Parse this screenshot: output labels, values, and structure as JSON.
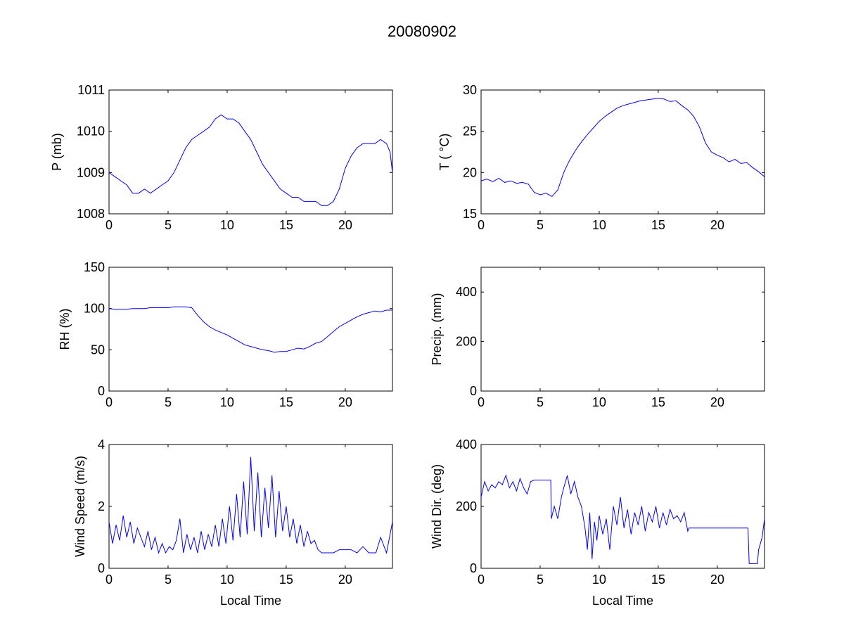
{
  "figure_title": "20080902",
  "chart_data": [
    {
      "type": "line",
      "title": "",
      "xlabel": "",
      "ylabel": "P (mb)",
      "xlim": [
        0,
        24
      ],
      "ylim": [
        1008,
        1011
      ],
      "xticks": [
        0,
        5,
        10,
        15,
        20
      ],
      "yticks": [
        1008,
        1009,
        1010,
        1011
      ],
      "grid": false,
      "color": "#0000ff",
      "series": [
        {
          "x": [
            0,
            0.5,
            1,
            1.5,
            2,
            2.5,
            3,
            3.5,
            4,
            4.5,
            5,
            5.5,
            6,
            6.5,
            7,
            7.5,
            8,
            8.5,
            9,
            9.5,
            10,
            10.5,
            11,
            11.5,
            12,
            12.5,
            13,
            13.5,
            14,
            14.5,
            15,
            15.5,
            16,
            16.5,
            17,
            17.5,
            18,
            18.5,
            19,
            19.5,
            20,
            20.5,
            21,
            21.5,
            22,
            22.5,
            23,
            23.5,
            23.8,
            24
          ],
          "y": [
            1009.0,
            1008.9,
            1008.8,
            1008.7,
            1008.5,
            1008.5,
            1008.6,
            1008.5,
            1008.6,
            1008.7,
            1008.8,
            1009.0,
            1009.3,
            1009.6,
            1009.8,
            1009.9,
            1010.0,
            1010.1,
            1010.3,
            1010.4,
            1010.3,
            1010.3,
            1010.2,
            1010.0,
            1009.8,
            1009.5,
            1009.2,
            1009.0,
            1008.8,
            1008.6,
            1008.5,
            1008.4,
            1008.4,
            1008.3,
            1008.3,
            1008.3,
            1008.2,
            1008.2,
            1008.3,
            1008.6,
            1009.1,
            1009.4,
            1009.6,
            1009.7,
            1009.7,
            1009.7,
            1009.8,
            1009.7,
            1009.5,
            1009.0
          ]
        }
      ]
    },
    {
      "type": "line",
      "title": "",
      "xlabel": "",
      "ylabel": "T ( °C)",
      "xlim": [
        0,
        24
      ],
      "ylim": [
        15,
        30
      ],
      "xticks": [
        0,
        5,
        10,
        15,
        20
      ],
      "yticks": [
        15,
        20,
        25,
        30
      ],
      "grid": false,
      "color": "#0000ff",
      "series": [
        {
          "x": [
            0,
            0.5,
            1,
            1.5,
            2,
            2.5,
            3,
            3.5,
            4,
            4.5,
            5,
            5.5,
            6,
            6.5,
            7,
            7.5,
            8,
            8.5,
            9,
            9.5,
            10,
            10.5,
            11,
            11.5,
            12,
            12.5,
            13,
            13.5,
            14,
            14.5,
            15,
            15.5,
            16,
            16.5,
            17,
            17.5,
            18,
            18.5,
            19,
            19.5,
            20,
            20.5,
            21,
            21.5,
            22,
            22.5,
            23,
            23.5,
            24
          ],
          "y": [
            19.0,
            19.2,
            18.9,
            19.3,
            18.8,
            19.0,
            18.7,
            18.8,
            18.6,
            17.6,
            17.3,
            17.5,
            17.1,
            17.9,
            20.0,
            21.5,
            22.7,
            23.7,
            24.6,
            25.4,
            26.2,
            26.8,
            27.3,
            27.8,
            28.1,
            28.3,
            28.5,
            28.7,
            28.8,
            28.9,
            29.0,
            28.9,
            28.6,
            28.7,
            28.1,
            27.6,
            26.8,
            25.5,
            23.6,
            22.5,
            22.1,
            21.8,
            21.3,
            21.6,
            21.1,
            21.2,
            20.6,
            20.1,
            19.5
          ]
        }
      ]
    },
    {
      "type": "line",
      "title": "",
      "xlabel": "",
      "ylabel": "RH (%)",
      "xlim": [
        0,
        24
      ],
      "ylim": [
        0,
        150
      ],
      "xticks": [
        0,
        5,
        10,
        15,
        20
      ],
      "yticks": [
        0,
        50,
        100,
        150
      ],
      "grid": false,
      "color": "#0000ff",
      "series": [
        {
          "x": [
            0,
            0.5,
            1,
            1.5,
            2,
            2.5,
            3,
            3.5,
            4,
            4.5,
            5,
            5.5,
            6,
            6.5,
            7,
            7.5,
            8,
            8.5,
            9,
            9.5,
            10,
            10.5,
            11,
            11.5,
            12,
            12.5,
            13,
            13.5,
            14,
            14.5,
            15,
            15.5,
            16,
            16.5,
            17,
            17.5,
            18,
            18.5,
            19,
            19.5,
            20,
            20.5,
            21,
            21.5,
            22,
            22.5,
            23,
            23.5,
            24
          ],
          "y": [
            100,
            99,
            99,
            99,
            100,
            100,
            100,
            101,
            101,
            101,
            101,
            102,
            102,
            102,
            101,
            92,
            84,
            78,
            74,
            71,
            68,
            64,
            60,
            56,
            54,
            52,
            50,
            49,
            47,
            48,
            48,
            50,
            52,
            51,
            54,
            58,
            60,
            66,
            72,
            78,
            82,
            86,
            90,
            93,
            95,
            97,
            96,
            98,
            98
          ]
        }
      ]
    },
    {
      "type": "line",
      "title": "",
      "xlabel": "",
      "ylabel": "Precip. (mm)",
      "xlim": [
        0,
        24
      ],
      "ylim": [
        0,
        500
      ],
      "xticks": [
        0,
        5,
        10,
        15,
        20
      ],
      "yticks": [
        0,
        200,
        400
      ],
      "grid": false,
      "color": "#0000ff",
      "series": []
    },
    {
      "type": "line",
      "title": "",
      "xlabel": "Local Time",
      "ylabel": "Wind Speed (m/s)",
      "xlim": [
        0,
        24
      ],
      "ylim": [
        0,
        4
      ],
      "xticks": [
        0,
        5,
        10,
        15,
        20
      ],
      "yticks": [
        0,
        2,
        4
      ],
      "grid": false,
      "color": "#0000ff",
      "series": [
        {
          "x": [
            0,
            0.3,
            0.6,
            0.9,
            1.2,
            1.5,
            1.8,
            2.1,
            2.4,
            2.7,
            3.0,
            3.3,
            3.6,
            3.9,
            4.2,
            4.5,
            4.8,
            5.1,
            5.4,
            5.7,
            6.0,
            6.3,
            6.6,
            6.9,
            7.2,
            7.5,
            7.8,
            8.1,
            8.4,
            8.7,
            9.0,
            9.3,
            9.6,
            9.9,
            10.2,
            10.5,
            10.8,
            11.1,
            11.4,
            11.7,
            12.0,
            12.3,
            12.6,
            12.9,
            13.2,
            13.5,
            13.8,
            14.1,
            14.4,
            14.7,
            15.0,
            15.3,
            15.6,
            15.9,
            16.2,
            16.5,
            16.8,
            17.1,
            17.4,
            17.7,
            18.0,
            18.5,
            19.0,
            19.5,
            20.0,
            20.5,
            21.0,
            21.5,
            22.0,
            22.3,
            22.6,
            23.0,
            23.5,
            24.0
          ],
          "y": [
            1.5,
            0.8,
            1.4,
            0.9,
            1.7,
            1.0,
            1.5,
            0.8,
            1.3,
            1.0,
            0.7,
            1.2,
            0.6,
            1.0,
            0.5,
            0.8,
            0.5,
            0.7,
            0.6,
            0.9,
            1.6,
            0.5,
            1.1,
            0.6,
            1.0,
            0.5,
            1.2,
            0.6,
            1.1,
            0.7,
            1.4,
            0.7,
            1.6,
            0.8,
            2.0,
            0.9,
            2.4,
            1.0,
            2.8,
            1.1,
            3.6,
            1.2,
            3.1,
            1.0,
            2.6,
            1.3,
            3.0,
            1.0,
            2.5,
            1.2,
            2.0,
            1.0,
            1.6,
            0.8,
            1.4,
            0.7,
            1.2,
            0.8,
            0.9,
            0.6,
            0.5,
            0.5,
            0.5,
            0.6,
            0.6,
            0.6,
            0.5,
            0.7,
            0.5,
            0.5,
            0.5,
            1.0,
            0.5,
            1.5
          ]
        }
      ]
    },
    {
      "type": "line",
      "title": "",
      "xlabel": "Local Time",
      "ylabel": "Wind Dir. (deg)",
      "xlim": [
        0,
        24
      ],
      "ylim": [
        0,
        400
      ],
      "xticks": [
        0,
        5,
        10,
        15,
        20
      ],
      "yticks": [
        0,
        200,
        400
      ],
      "grid": false,
      "color": "#0000ff",
      "series": [
        {
          "x": [
            0,
            0.3,
            0.6,
            0.9,
            1.2,
            1.5,
            1.8,
            2.1,
            2.4,
            2.7,
            3.0,
            3.3,
            3.6,
            3.9,
            4.2,
            4.5,
            5.0,
            5.5,
            5.9,
            5.95,
            6.2,
            6.5,
            6.8,
            7.0,
            7.3,
            7.6,
            7.9,
            8.2,
            8.5,
            8.8,
            9.0,
            9.2,
            9.4,
            9.6,
            9.8,
            10.0,
            10.3,
            10.6,
            10.9,
            11.2,
            11.5,
            11.8,
            12.1,
            12.4,
            12.7,
            13.0,
            13.3,
            13.6,
            13.9,
            14.2,
            14.5,
            14.8,
            15.1,
            15.4,
            15.7,
            16.0,
            16.3,
            16.6,
            16.9,
            17.2,
            17.5,
            17.6,
            18.0,
            19.0,
            20.0,
            21.0,
            22.0,
            22.6,
            22.7,
            23.4,
            23.5,
            23.8,
            24.0
          ],
          "y": [
            230,
            280,
            250,
            270,
            260,
            280,
            270,
            300,
            260,
            280,
            250,
            290,
            260,
            240,
            280,
            285,
            285,
            285,
            285,
            160,
            200,
            160,
            230,
            260,
            300,
            240,
            280,
            230,
            200,
            130,
            60,
            180,
            30,
            150,
            90,
            170,
            110,
            160,
            60,
            200,
            140,
            230,
            130,
            190,
            110,
            180,
            140,
            200,
            120,
            180,
            150,
            200,
            130,
            180,
            140,
            190,
            160,
            170,
            150,
            180,
            120,
            130,
            130,
            130,
            130,
            130,
            130,
            130,
            15,
            15,
            60,
            100,
            160
          ]
        }
      ]
    }
  ]
}
